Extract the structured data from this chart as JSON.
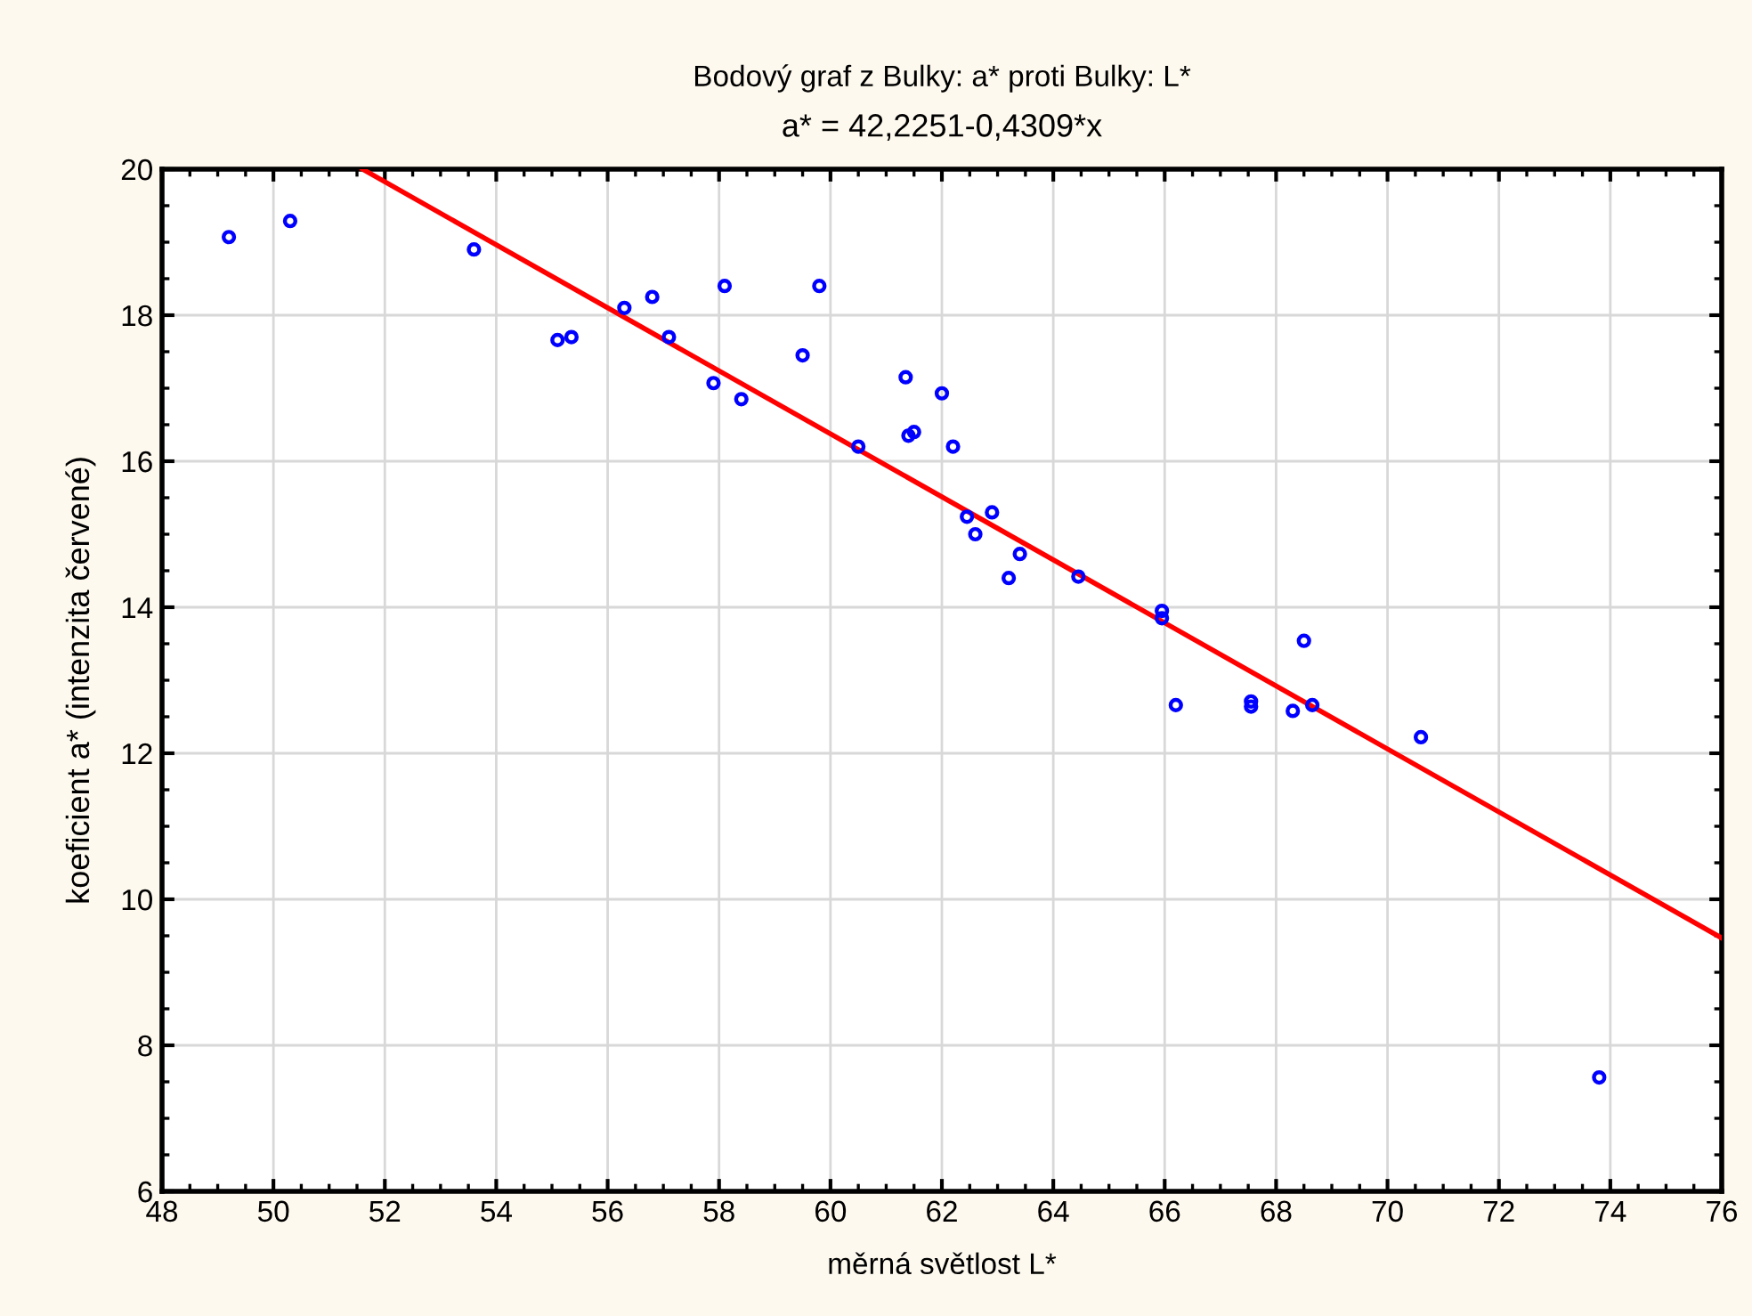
{
  "chart_data": {
    "type": "scatter",
    "title": "Bodový graf z Bulky: a* proti Bulky: L*",
    "subtitle": "a* = 42,2251-0,4309*x",
    "xlabel": "měrná světlost L*",
    "ylabel": "koeficient a* (intenzita červené)",
    "xlim": [
      48,
      76
    ],
    "ylim": [
      6,
      20
    ],
    "xticks": [
      48,
      50,
      52,
      54,
      56,
      58,
      60,
      62,
      64,
      66,
      68,
      70,
      72,
      74,
      76
    ],
    "yticks": [
      6,
      8,
      10,
      12,
      14,
      16,
      18,
      20
    ],
    "grid": true,
    "series": [
      {
        "marker": "circle",
        "color": "#0000ff",
        "x": [
          49.2,
          50.3,
          53.6,
          55.1,
          55.35,
          56.3,
          56.8,
          57.1,
          57.9,
          58.1,
          58.4,
          59.5,
          59.8,
          60.5,
          61.35,
          61.4,
          61.5,
          62.0,
          62.2,
          62.45,
          62.6,
          62.9,
          63.2,
          63.4,
          64.45,
          65.95,
          65.95,
          66.2,
          67.55,
          67.55,
          68.3,
          68.5,
          68.65,
          70.6,
          73.8
        ],
        "values": [
          19.07,
          19.29,
          18.9,
          17.66,
          17.7,
          18.1,
          18.25,
          17.7,
          17.07,
          18.4,
          16.85,
          17.45,
          18.4,
          16.2,
          17.15,
          16.35,
          16.4,
          16.93,
          16.2,
          15.24,
          15.0,
          15.3,
          14.4,
          14.73,
          14.42,
          13.95,
          13.85,
          12.66,
          12.71,
          12.64,
          12.58,
          13.54,
          12.66,
          12.22,
          7.56
        ]
      },
      {
        "type": "line",
        "marker": "none",
        "color": "#ff0000",
        "x": [
          51.6,
          76
        ],
        "values": [
          20.0,
          9.47
        ]
      }
    ]
  }
}
